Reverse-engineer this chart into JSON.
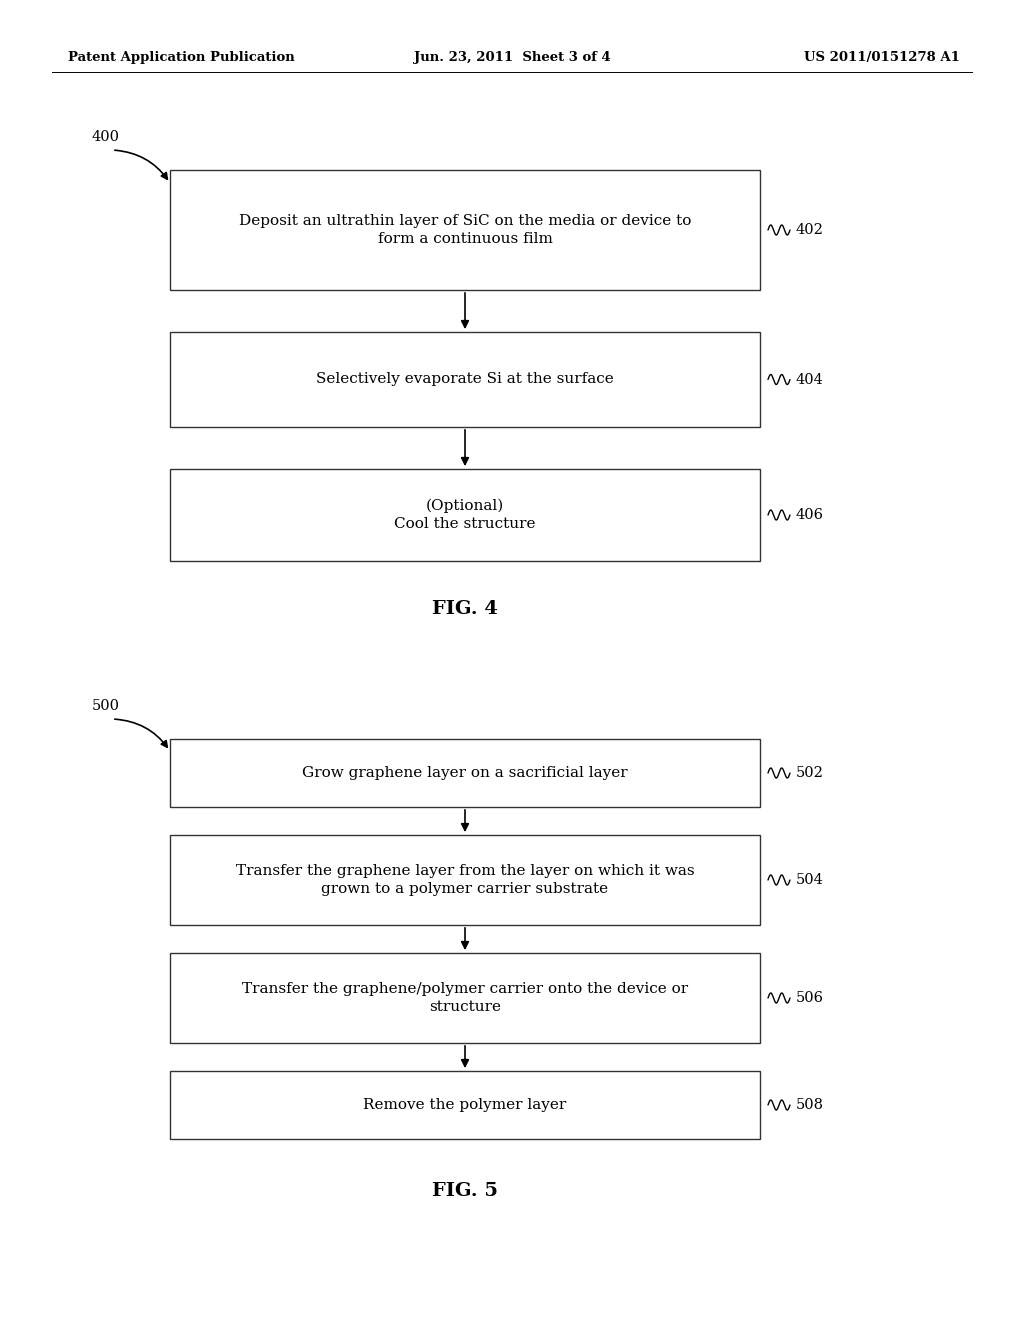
{
  "bg_color": "#ffffff",
  "header_left": "Patent Application Publication",
  "header_center": "Jun. 23, 2011  Sheet 3 of 4",
  "header_right": "US 2011/0151278 A1",
  "fig4_label": "400",
  "fig4_caption": "FIG. 4",
  "fig4_boxes": [
    {
      "text": "Deposit an ultrathin layer of SiC on the media or device to\nform a continuous film",
      "ref": "402"
    },
    {
      "text": "Selectively evaporate Si at the surface",
      "ref": "404"
    },
    {
      "text": "(Optional)\nCool the structure",
      "ref": "406"
    }
  ],
  "fig5_label": "500",
  "fig5_caption": "FIG. 5",
  "fig5_boxes": [
    {
      "text": "Grow graphene layer on a sacrificial layer",
      "ref": "502"
    },
    {
      "text": "Transfer the graphene layer from the layer on which it was\ngrown to a polymer carrier substrate",
      "ref": "504"
    },
    {
      "text": "Transfer the graphene/polymer carrier onto the device or\nstructure",
      "ref": "506"
    },
    {
      "text": "Remove the polymer layer",
      "ref": "508"
    }
  ]
}
